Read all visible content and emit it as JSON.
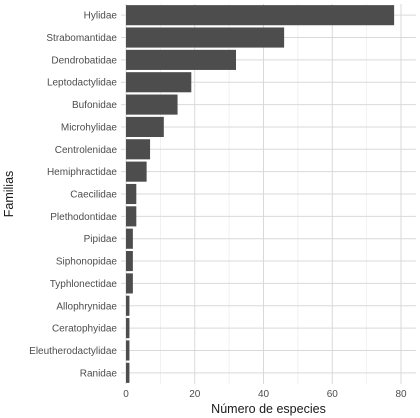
{
  "chart_data": {
    "type": "bar",
    "orientation": "horizontal",
    "title": "",
    "xlabel": "Número de especies",
    "ylabel": "Familias",
    "categories": [
      "Hylidae",
      "Strabomantidae",
      "Dendrobatidae",
      "Leptodactylidae",
      "Bufonidae",
      "Microhylidae",
      "Centrolenidae",
      "Hemiphractidae",
      "Caecilidae",
      "Plethodontidae",
      "Pipidae",
      "Siphonopidae",
      "Typhlonectidae",
      "Allophrynidae",
      "Ceratophyidae",
      "Eleutherodactylidae",
      "Ranidae"
    ],
    "values": [
      78,
      46,
      32,
      19,
      15,
      11,
      7,
      6,
      3,
      3,
      2,
      2,
      2,
      1,
      1,
      1,
      1
    ],
    "xlim": [
      0,
      80
    ],
    "xticks": [
      0,
      20,
      40,
      60,
      80
    ],
    "grid": true,
    "bar_color": "#4d4d4d",
    "grid_color": "#d9d9d9"
  }
}
